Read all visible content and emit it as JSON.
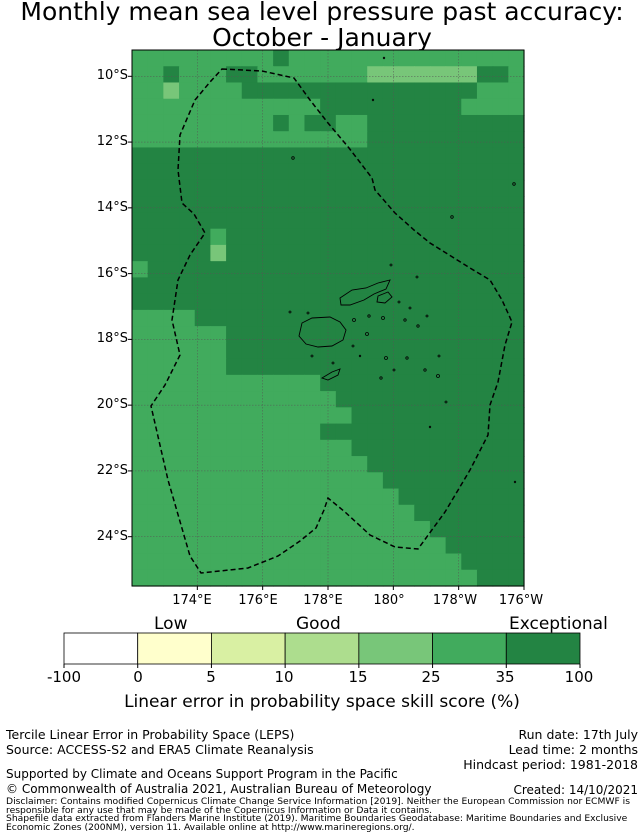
{
  "title": {
    "line1": "Monthly mean sea level pressure past accuracy:",
    "line2": "October - January"
  },
  "map": {
    "lat_labels": [
      "10°S",
      "12°S",
      "14°S",
      "16°S",
      "18°S",
      "20°S",
      "22°S",
      "24°S"
    ],
    "lon_labels": [
      "174°E",
      "176°E",
      "178°E",
      "180°",
      "178°W",
      "176°W"
    ],
    "lat_range": [
      -25.5,
      -9.2
    ],
    "lon_range": [
      172.0,
      184.0
    ],
    "grid_rows": [
      "5555555556555555555555555",
      "5565556655555554444444665",
      "5545555666666666666666555",
      "5555555555556666666665555",
      "5555555556566556666666666",
      "5555555555555556666666666",
      "6666666666666666666666666",
      "6666666666666666666666666",
      "6666666666666666666666666",
      "6666666666666666666666666",
      "6666666666666666666666666",
      "6666656666666666666666666",
      "6666646666666666666666666",
      "5666666666666666666666666",
      "6666666666666666666666666",
      "6666666666666666666666666",
      "5555666666666666666666666",
      "5555556666666666666666666",
      "5555556666666666666666666",
      "5555556666666666666666666",
      "5555555555556666666666666",
      "5555555555555666666666666",
      "5555555555555566666666666",
      "5555555555556666666666666",
      "5555555555555566666666666",
      "5555555555555556666666666",
      "5555555555555555666666666",
      "5555555555555555566666666",
      "5555555555555555556666666",
      "5555555555555555555666666",
      "5555555555555555555566666",
      "5555555555555555555556666",
      "5555555555555555555555666"
    ],
    "category_colors": [
      "#ffffff",
      "#ffffcc",
      "#d9f0a3",
      "#addd8e",
      "#78c679",
      "#41ab5d",
      "#238443"
    ]
  },
  "colorbar": {
    "category_labels": [
      "Low",
      "Good",
      "Exceptional"
    ],
    "ticks": [
      "-100",
      "0",
      "5",
      "10",
      "15",
      "25",
      "35",
      "100"
    ],
    "title": "Linear error in probability space skill score (%)"
  },
  "footer": {
    "left1": "Tercile Linear Error in Probability Space (LEPS)",
    "left2": "Source: ACCESS-S2 and ERA5 Climate Reanalysis",
    "run_date": "Run date: 17th July",
    "lead_time": "Lead time: 2 months",
    "hindcast": "Hindcast period: 1981-2018",
    "supported": "Supported by Climate and Oceans Support Program in the Pacific",
    "copyright": "© Commonwealth of Australia 2021, Australian Bureau of Meteorology",
    "created": "Created: 14/10/2021",
    "disclaimer1": "Disclaimer: Contains modified Copernicus Climate Change Service Information [2019]. Neither the European Commission nor ECMWF is",
    "disclaimer2": "responsible for any use that may be made of the Copernicus Information or Data it contains.",
    "shapefile1": "Shapefile data extracted from Flanders Marine Institute (2019). Maritime Boundaries Geodatabase: Maritime Boundaries and Exclusive",
    "shapefile2": "Economic Zones (200NM), version 11. Available online at http://www.marineregions.org/."
  }
}
